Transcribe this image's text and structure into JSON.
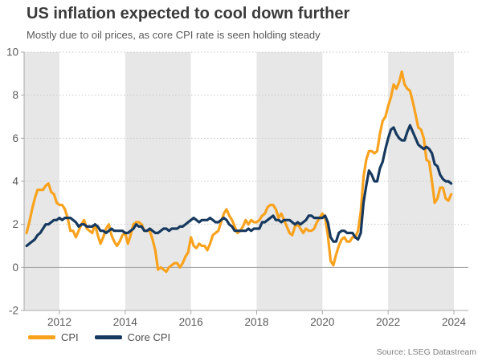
{
  "header": {
    "title": "US inflation expected to cool down further",
    "subtitle": "Mostly due to oil prices, as core CPI rate is seen holding steady"
  },
  "source": "Source: LSEG Datastream",
  "colors": {
    "cpi_line": "#F9A21D",
    "core_cpi_line": "#17395F",
    "band_fill": "#e7e7e7",
    "gridline": "#c9c9c9",
    "zero_line": "#9c9c9c",
    "axis_line": "#a8a8a8",
    "tick_label": "#595959"
  },
  "chart_data": {
    "type": "line",
    "title": "US inflation expected to cool down further",
    "subtitle": "Mostly due to oil prices, as core CPI rate is seen holding steady",
    "unit": "percent YoY",
    "x_interval": "monthly",
    "x_start": "2011-01",
    "x_end": "2023-12",
    "xlim": [
      2010.925,
      2024.44
    ],
    "ylim": [
      -2,
      10
    ],
    "y_ticks": [
      -2,
      0,
      2,
      4,
      6,
      8,
      10
    ],
    "x_ticks": [
      2012,
      2014,
      2016,
      2018,
      2020,
      2022,
      2024
    ],
    "grid": "horizontal-dotted",
    "zero_line": true,
    "shaded_year_bands": [
      [
        2010.925,
        2012
      ],
      [
        2014,
        2016
      ],
      [
        2018,
        2020
      ],
      [
        2022,
        2024
      ]
    ],
    "legend_position": "bottom-left",
    "series": [
      {
        "name": "CPI",
        "color": "#F9A21D",
        "values": [
          1.6,
          2.1,
          2.7,
          3.2,
          3.6,
          3.6,
          3.6,
          3.8,
          3.9,
          3.5,
          3.4,
          3.0,
          2.9,
          2.9,
          2.7,
          2.3,
          1.7,
          1.7,
          1.4,
          1.7,
          2.0,
          2.2,
          1.8,
          1.7,
          1.6,
          2.0,
          1.5,
          1.1,
          1.4,
          1.8,
          2.0,
          1.5,
          1.2,
          1.0,
          1.2,
          1.5,
          1.6,
          1.1,
          1.5,
          2.0,
          2.1,
          2.1,
          2.0,
          1.7,
          1.7,
          1.7,
          1.3,
          0.8,
          -0.1,
          0.0,
          -0.1,
          -0.2,
          0.0,
          0.1,
          0.2,
          0.2,
          0.0,
          0.2,
          0.5,
          0.7,
          1.4,
          1.0,
          0.9,
          1.1,
          1.0,
          1.0,
          0.8,
          1.1,
          1.5,
          1.6,
          1.7,
          2.1,
          2.5,
          2.7,
          2.4,
          2.2,
          1.9,
          1.6,
          1.7,
          1.9,
          2.2,
          2.0,
          2.2,
          2.1,
          2.1,
          2.2,
          2.4,
          2.5,
          2.8,
          2.9,
          2.9,
          2.7,
          2.3,
          2.5,
          2.2,
          1.9,
          1.6,
          1.5,
          1.9,
          2.0,
          1.8,
          1.6,
          1.8,
          1.7,
          1.7,
          1.8,
          2.1,
          2.3,
          2.5,
          2.3,
          1.5,
          0.3,
          0.1,
          0.6,
          1.0,
          1.3,
          1.4,
          1.2,
          1.2,
          1.4,
          1.4,
          1.7,
          2.6,
          4.2,
          5.0,
          5.4,
          5.4,
          5.3,
          5.4,
          6.2,
          6.8,
          7.0,
          7.5,
          7.9,
          8.5,
          8.3,
          8.6,
          9.1,
          8.5,
          8.3,
          8.2,
          7.7,
          7.1,
          6.5,
          6.4,
          6.0,
          5.0,
          4.9,
          4.0,
          3.0,
          3.2,
          3.7,
          3.7,
          3.2,
          3.1,
          3.4
        ]
      },
      {
        "name": "Core CPI",
        "color": "#17395F",
        "values": [
          1.0,
          1.1,
          1.2,
          1.3,
          1.5,
          1.6,
          1.8,
          2.0,
          2.0,
          2.1,
          2.2,
          2.2,
          2.3,
          2.2,
          2.3,
          2.3,
          2.3,
          2.2,
          2.1,
          1.9,
          2.0,
          2.0,
          1.9,
          1.9,
          1.9,
          2.0,
          1.9,
          1.7,
          1.7,
          1.6,
          1.7,
          1.8,
          1.7,
          1.7,
          1.7,
          1.7,
          1.6,
          1.6,
          1.7,
          1.8,
          2.0,
          1.9,
          1.9,
          1.7,
          1.7,
          1.8,
          1.7,
          1.6,
          1.6,
          1.7,
          1.8,
          1.8,
          1.7,
          1.8,
          1.8,
          1.8,
          1.9,
          1.9,
          2.0,
          2.1,
          2.2,
          2.3,
          2.2,
          2.1,
          2.2,
          2.2,
          2.2,
          2.3,
          2.2,
          2.1,
          2.1,
          2.2,
          2.3,
          2.2,
          2.0,
          1.9,
          1.7,
          1.7,
          1.7,
          1.7,
          1.7,
          1.8,
          1.7,
          1.8,
          1.8,
          1.8,
          2.1,
          2.1,
          2.2,
          2.3,
          2.4,
          2.2,
          2.2,
          2.1,
          2.2,
          2.2,
          2.2,
          2.1,
          2.0,
          2.1,
          2.0,
          2.1,
          2.2,
          2.4,
          2.4,
          2.3,
          2.3,
          2.3,
          2.3,
          2.4,
          2.1,
          1.4,
          1.2,
          1.2,
          1.6,
          1.7,
          1.7,
          1.6,
          1.6,
          1.6,
          1.4,
          1.3,
          1.6,
          3.0,
          3.8,
          4.5,
          4.3,
          4.0,
          4.0,
          4.6,
          4.9,
          5.5,
          6.0,
          6.4,
          6.5,
          6.2,
          6.0,
          5.9,
          5.9,
          6.3,
          6.6,
          6.3,
          6.0,
          5.7,
          5.6,
          5.5,
          5.6,
          5.5,
          5.3,
          4.8,
          4.7,
          4.3,
          4.1,
          4.0,
          4.0,
          3.9
        ]
      }
    ]
  },
  "legend": {
    "cpi_label": "CPI",
    "core_cpi_label": "Core CPI"
  }
}
